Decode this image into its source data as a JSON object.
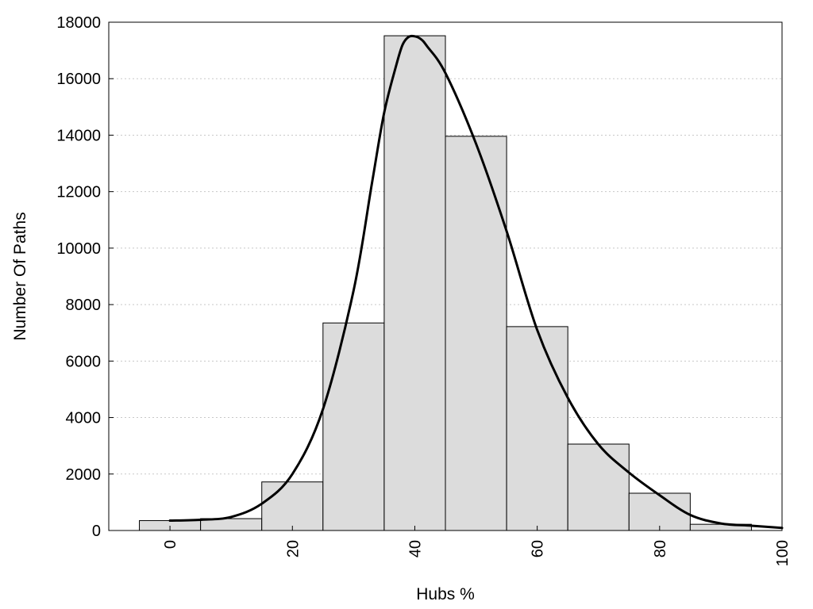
{
  "chart_data": {
    "type": "bar",
    "title": "",
    "xlabel": "Hubs %",
    "ylabel": "Number Of Paths",
    "xlim": [
      -10,
      100
    ],
    "ylim": [
      0,
      18000
    ],
    "grid": true,
    "bin_width": 10,
    "bin_centers": [
      0,
      10,
      20,
      30,
      40,
      50,
      60,
      70,
      80,
      90
    ],
    "values": [
      350,
      420,
      1720,
      7350,
      17520,
      13960,
      7220,
      3060,
      1320,
      220
    ],
    "x_ticks": [
      0,
      20,
      40,
      60,
      80,
      100
    ],
    "x_tick_labels": [
      "0",
      "20",
      "40",
      "60",
      "80",
      "100"
    ],
    "y_ticks": [
      0,
      2000,
      4000,
      6000,
      8000,
      10000,
      12000,
      14000,
      16000,
      18000
    ],
    "y_tick_labels": [
      "0",
      "2000",
      "4000",
      "6000",
      "8000",
      "10000",
      "12000",
      "14000",
      "16000",
      "18000"
    ],
    "density_curve": {
      "x": [
        0,
        5,
        10,
        15,
        20,
        25,
        30,
        33,
        35,
        37,
        38,
        39,
        40,
        41,
        42,
        45,
        50,
        55,
        60,
        65,
        70,
        75,
        80,
        85,
        90,
        95,
        100
      ],
      "y": [
        350,
        380,
        480,
        950,
        2000,
        4300,
        8500,
        12300,
        14800,
        16500,
        17200,
        17480,
        17500,
        17400,
        17150,
        16200,
        13700,
        10600,
        7100,
        4700,
        3050,
        2050,
        1250,
        550,
        250,
        170,
        90
      ]
    },
    "colors": {
      "bar_fill": "#dcdcdc",
      "bar_stroke": "#000000",
      "curve": "#000000",
      "grid": "#c8c8c8"
    }
  }
}
